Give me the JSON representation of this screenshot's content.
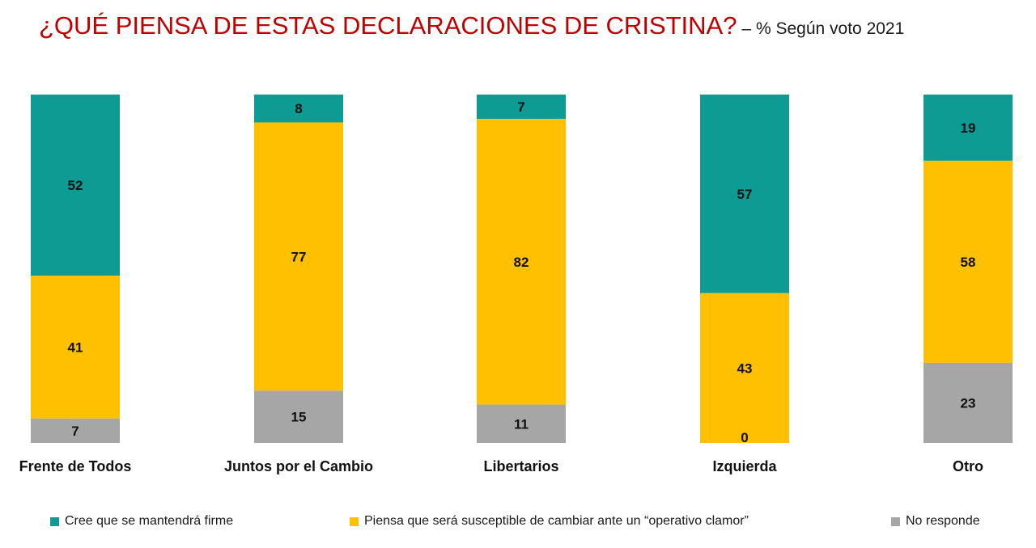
{
  "title": "¿QUÉ PIENSA DE ESTAS DECLARACIONES DE CRISTINA?",
  "subtitle": "– % Según voto 2021",
  "colors": {
    "title": "#c00000",
    "firme": "#0e9b94",
    "cambiar": "#fec000",
    "no_responde": "#a6a6a6"
  },
  "legend": [
    {
      "label": "Cree que se mantendrá firme",
      "color": "#0e9b94"
    },
    {
      "label": "Piensa que será susceptible de cambiar ante un “operativo clamor”",
      "color": "#fec000"
    },
    {
      "label": "No responde",
      "color": "#a6a6a6"
    }
  ],
  "chart_data": {
    "type": "bar",
    "stacked": true,
    "normalized_percent": true,
    "title": "¿QUÉ PIENSA DE ESTAS DECLARACIONES DE CRISTINA?",
    "subtitle": "– % Según voto 2021",
    "categories": [
      "Frente de Todos",
      "Juntos por el Cambio",
      "Libertarios",
      "Izquierda",
      "Otro"
    ],
    "series": [
      {
        "name": "Cree que se mantendrá firme",
        "values": [
          52,
          8,
          7,
          57,
          19
        ],
        "color": "#0e9b94"
      },
      {
        "name": "Piensa que será susceptible de cambiar ante un “operativo clamor”",
        "values": [
          41,
          77,
          82,
          43,
          58
        ],
        "color": "#fec000"
      },
      {
        "name": "No responde",
        "values": [
          7,
          15,
          11,
          0,
          23
        ],
        "color": "#a6a6a6"
      }
    ],
    "ylim": [
      0,
      100
    ],
    "legend_position": "bottom",
    "grid": false
  }
}
